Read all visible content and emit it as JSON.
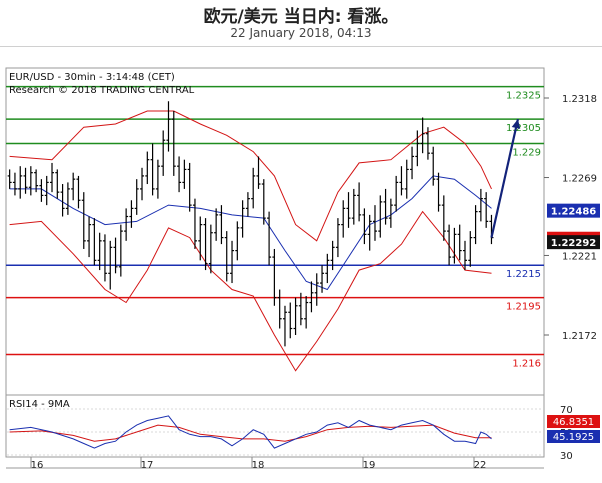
{
  "header": {
    "title": "欧元/美元 当日内: 看涨。",
    "subtitle": "22 January 2018, 04:13"
  },
  "chart_data": {
    "type": "candlestick",
    "info_line1": "EUR/USD - 30min - 3:14:48 (CET)",
    "info_line2": "Research © 2018 TRADING CENTRAL",
    "price_axis": {
      "ylim": [
        2.2137,
        1.2346
      ],
      "ticks": [
        1.2318,
        1.2269,
        1.2221,
        1.2172
      ]
    },
    "x_ticks": [
      "16",
      "17",
      "18",
      "19",
      "22"
    ],
    "levels": [
      {
        "value": 1.2325,
        "label": "1.2325",
        "color": "#1f8c1f"
      },
      {
        "value": 1.2305,
        "label": "1.2305",
        "color": "#1f8c1f"
      },
      {
        "value": 1.229,
        "label": "1.229",
        "color": "#1f8c1f"
      },
      {
        "value": 1.2215,
        "label": "1.2215",
        "color": "#1a2fb0"
      },
      {
        "value": 1.2195,
        "label": "1.2195",
        "color": "#dd1111"
      },
      {
        "value": 1.216,
        "label": "1.216",
        "color": "#dd1111"
      }
    ],
    "price_badges": [
      {
        "value": 1.22486,
        "label": "1.22486",
        "color": "#1a2fb0"
      },
      {
        "value": 1.22313,
        "label": "1.22313",
        "color": "#dd1111"
      },
      {
        "value": 1.22292,
        "label": "1.22292",
        "color": "#111111"
      }
    ],
    "ohlc": [
      [
        1.227,
        1.2274,
        1.2262,
        1.2266
      ],
      [
        1.2266,
        1.2272,
        1.2258,
        1.2262
      ],
      [
        1.2262,
        1.2276,
        1.2256,
        1.227
      ],
      [
        1.227,
        1.2275,
        1.2259,
        1.2263
      ],
      [
        1.2263,
        1.2276,
        1.2258,
        1.2272
      ],
      [
        1.2272,
        1.2274,
        1.226,
        1.2264
      ],
      [
        1.2264,
        1.2268,
        1.2254,
        1.2258
      ],
      [
        1.2258,
        1.227,
        1.2252,
        1.2266
      ],
      [
        1.2266,
        1.2278,
        1.226,
        1.2272
      ],
      [
        1.2272,
        1.2274,
        1.2256,
        1.226
      ],
      [
        1.226,
        1.2265,
        1.2245,
        1.225
      ],
      [
        1.225,
        1.2266,
        1.2246,
        1.2262
      ],
      [
        1.2262,
        1.2272,
        1.2255,
        1.2268
      ],
      [
        1.2268,
        1.227,
        1.225,
        1.2255
      ],
      [
        1.2255,
        1.226,
        1.2225,
        1.223
      ],
      [
        1.223,
        1.2245,
        1.222,
        1.224
      ],
      [
        1.224,
        1.2244,
        1.2215,
        1.2218
      ],
      [
        1.2218,
        1.2235,
        1.2212,
        1.223
      ],
      [
        1.223,
        1.2234,
        1.2205,
        1.221
      ],
      [
        1.221,
        1.223,
        1.22,
        1.2226
      ],
      [
        1.2226,
        1.2232,
        1.221,
        1.2214
      ],
      [
        1.2214,
        1.224,
        1.2208,
        1.2236
      ],
      [
        1.2236,
        1.225,
        1.223,
        1.2245
      ],
      [
        1.2245,
        1.2255,
        1.2238,
        1.225
      ],
      [
        1.225,
        1.2268,
        1.2246,
        1.2262
      ],
      [
        1.2262,
        1.2275,
        1.2255,
        1.227
      ],
      [
        1.227,
        1.2285,
        1.2265,
        1.228
      ],
      [
        1.228,
        1.229,
        1.2258,
        1.2262
      ],
      [
        1.2262,
        1.228,
        1.2256,
        1.2276
      ],
      [
        1.2276,
        1.2298,
        1.227,
        1.2292
      ],
      [
        1.2292,
        1.2316,
        1.2285,
        1.2305
      ],
      [
        1.2305,
        1.231,
        1.227,
        1.2276
      ],
      [
        1.2276,
        1.2282,
        1.226,
        1.2266
      ],
      [
        1.2266,
        1.228,
        1.2262,
        1.2274
      ],
      [
        1.2274,
        1.2278,
        1.2248,
        1.2252
      ],
      [
        1.2252,
        1.2256,
        1.2225,
        1.223
      ],
      [
        1.223,
        1.2245,
        1.2218,
        1.224
      ],
      [
        1.224,
        1.2244,
        1.2212,
        1.2216
      ],
      [
        1.2216,
        1.224,
        1.221,
        1.2235
      ],
      [
        1.2235,
        1.225,
        1.223,
        1.2246
      ],
      [
        1.2246,
        1.2252,
        1.2228,
        1.2232
      ],
      [
        1.2232,
        1.2236,
        1.2205,
        1.221
      ],
      [
        1.221,
        1.223,
        1.2204,
        1.2224
      ],
      [
        1.2224,
        1.2242,
        1.2218,
        1.2238
      ],
      [
        1.2238,
        1.2255,
        1.2232,
        1.225
      ],
      [
        1.225,
        1.226,
        1.2245,
        1.2256
      ],
      [
        1.2256,
        1.2275,
        1.225,
        1.227
      ],
      [
        1.227,
        1.2282,
        1.2262,
        1.2265
      ],
      [
        1.2265,
        1.2268,
        1.224,
        1.2244
      ],
      [
        1.2244,
        1.2248,
        1.2215,
        1.222
      ],
      [
        1.222,
        1.2225,
        1.219,
        1.2195
      ],
      [
        1.2195,
        1.22,
        1.2176,
        1.2182
      ],
      [
        1.2182,
        1.219,
        1.2165,
        1.2186
      ],
      [
        1.2186,
        1.2192,
        1.217,
        1.2176
      ],
      [
        1.2176,
        1.2195,
        1.2172,
        1.219
      ],
      [
        1.219,
        1.2198,
        1.2178,
        1.2182
      ],
      [
        1.2182,
        1.2196,
        1.2176,
        1.2192
      ],
      [
        1.2192,
        1.2205,
        1.2186,
        1.2198
      ],
      [
        1.2198,
        1.221,
        1.219,
        1.2204
      ],
      [
        1.2204,
        1.2215,
        1.2198,
        1.221
      ],
      [
        1.221,
        1.2222,
        1.2204,
        1.2218
      ],
      [
        1.2218,
        1.223,
        1.2212,
        1.2226
      ],
      [
        1.2226,
        1.2244,
        1.222,
        1.224
      ],
      [
        1.224,
        1.2255,
        1.2232,
        1.225
      ],
      [
        1.225,
        1.226,
        1.2238,
        1.2244
      ],
      [
        1.2244,
        1.2262,
        1.224,
        1.2258
      ],
      [
        1.2258,
        1.2266,
        1.2242,
        1.2246
      ],
      [
        1.2246,
        1.225,
        1.2228,
        1.2234
      ],
      [
        1.2234,
        1.2246,
        1.2224,
        1.2242
      ],
      [
        1.2242,
        1.2252,
        1.223,
        1.2236
      ],
      [
        1.2236,
        1.2258,
        1.2232,
        1.2254
      ],
      [
        1.2254,
        1.2262,
        1.224,
        1.2244
      ],
      [
        1.2244,
        1.2256,
        1.2238,
        1.2252
      ],
      [
        1.2252,
        1.227,
        1.2248,
        1.2266
      ],
      [
        1.2266,
        1.2276,
        1.2258,
        1.2262
      ],
      [
        1.2262,
        1.228,
        1.2256,
        1.2274
      ],
      [
        1.2274,
        1.2288,
        1.2268,
        1.2282
      ],
      [
        1.2282,
        1.2298,
        1.2276,
        1.229
      ],
      [
        1.229,
        1.2306,
        1.2284,
        1.2296
      ],
      [
        1.2296,
        1.23,
        1.228,
        1.2284
      ],
      [
        1.2284,
        1.2288,
        1.2264,
        1.2268
      ],
      [
        1.2268,
        1.2272,
        1.2248,
        1.2252
      ],
      [
        1.2252,
        1.2258,
        1.223,
        1.2236
      ],
      [
        1.2236,
        1.224,
        1.2215,
        1.222
      ],
      [
        1.222,
        1.2238,
        1.2216,
        1.2234
      ],
      [
        1.2234,
        1.224,
        1.2218,
        1.2224
      ],
      [
        1.2224,
        1.223,
        1.2212,
        1.2218
      ],
      [
        1.2218,
        1.2236,
        1.2214,
        1.2232
      ],
      [
        1.2232,
        1.2252,
        1.2228,
        1.2248
      ],
      [
        1.2248,
        1.2262,
        1.2242,
        1.2256
      ],
      [
        1.2256,
        1.226,
        1.2238,
        1.2242
      ],
      [
        1.2242,
        1.2246,
        1.2228,
        1.2232
      ]
    ],
    "bollinger_upper": [
      [
        0,
        1.2282
      ],
      [
        8,
        1.228
      ],
      [
        14,
        1.23
      ],
      [
        20,
        1.2302
      ],
      [
        26,
        1.231
      ],
      [
        31,
        1.231
      ],
      [
        36,
        1.2302
      ],
      [
        41,
        1.2295
      ],
      [
        46,
        1.2285
      ],
      [
        50,
        1.227
      ],
      [
        54,
        1.224
      ],
      [
        58,
        1.223
      ],
      [
        62,
        1.226
      ],
      [
        66,
        1.2278
      ],
      [
        72,
        1.228
      ],
      [
        78,
        1.2296
      ],
      [
        82,
        1.23
      ],
      [
        86,
        1.229
      ],
      [
        89,
        1.2276
      ],
      [
        91,
        1.2262
      ]
    ],
    "bollinger_lower": [
      [
        0,
        1.224
      ],
      [
        6,
        1.2242
      ],
      [
        12,
        1.2222
      ],
      [
        18,
        1.22
      ],
      [
        22,
        1.2192
      ],
      [
        26,
        1.2212
      ],
      [
        30,
        1.2238
      ],
      [
        34,
        1.2232
      ],
      [
        38,
        1.2212
      ],
      [
        42,
        1.22
      ],
      [
        46,
        1.2196
      ],
      [
        50,
        1.2172
      ],
      [
        54,
        1.215
      ],
      [
        58,
        1.2168
      ],
      [
        62,
        1.2188
      ],
      [
        66,
        1.2212
      ],
      [
        70,
        1.2216
      ],
      [
        74,
        1.2228
      ],
      [
        78,
        1.2248
      ],
      [
        82,
        1.2232
      ],
      [
        86,
        1.2212
      ],
      [
        91,
        1.221
      ]
    ],
    "ma_line": [
      [
        0,
        1.2262
      ],
      [
        6,
        1.2262
      ],
      [
        12,
        1.225
      ],
      [
        18,
        1.224
      ],
      [
        24,
        1.2242
      ],
      [
        30,
        1.2252
      ],
      [
        36,
        1.225
      ],
      [
        42,
        1.2246
      ],
      [
        48,
        1.2244
      ],
      [
        52,
        1.2224
      ],
      [
        56,
        1.2205
      ],
      [
        60,
        1.22
      ],
      [
        64,
        1.222
      ],
      [
        68,
        1.224
      ],
      [
        72,
        1.2246
      ],
      [
        76,
        1.2256
      ],
      [
        80,
        1.227
      ],
      [
        84,
        1.2268
      ],
      [
        88,
        1.2258
      ],
      [
        91,
        1.225
      ]
    ],
    "forecast_arrow": {
      "from": [
        91,
        1.2232
      ],
      "to": [
        96,
        1.2305
      ]
    },
    "rsi": {
      "label": "RSI14 - 9MA",
      "ylim": [
        30,
        70
      ],
      "ticks": [
        70,
        50,
        30
      ],
      "rsi_value": "46.8351",
      "ma_value": "45.1925",
      "rsi": [
        [
          0,
          52
        ],
        [
          4,
          54
        ],
        [
          8,
          50
        ],
        [
          12,
          44
        ],
        [
          14,
          40
        ],
        [
          16,
          36
        ],
        [
          18,
          40
        ],
        [
          20,
          42
        ],
        [
          22,
          50
        ],
        [
          24,
          56
        ],
        [
          26,
          60
        ],
        [
          28,
          62
        ],
        [
          30,
          64
        ],
        [
          32,
          52
        ],
        [
          34,
          48
        ],
        [
          36,
          46
        ],
        [
          38,
          46
        ],
        [
          40,
          44
        ],
        [
          42,
          38
        ],
        [
          44,
          44
        ],
        [
          46,
          52
        ],
        [
          48,
          48
        ],
        [
          50,
          36
        ],
        [
          52,
          40
        ],
        [
          54,
          44
        ],
        [
          56,
          48
        ],
        [
          58,
          50
        ],
        [
          60,
          56
        ],
        [
          62,
          58
        ],
        [
          64,
          54
        ],
        [
          66,
          60
        ],
        [
          68,
          56
        ],
        [
          70,
          54
        ],
        [
          72,
          52
        ],
        [
          74,
          56
        ],
        [
          76,
          58
        ],
        [
          78,
          60
        ],
        [
          80,
          56
        ],
        [
          82,
          48
        ],
        [
          84,
          42
        ],
        [
          86,
          42
        ],
        [
          88,
          40
        ],
        [
          89,
          50
        ],
        [
          90,
          48
        ],
        [
          91,
          44
        ]
      ],
      "ma": [
        [
          0,
          50
        ],
        [
          6,
          51
        ],
        [
          12,
          47
        ],
        [
          16,
          42
        ],
        [
          20,
          44
        ],
        [
          24,
          50
        ],
        [
          28,
          56
        ],
        [
          32,
          54
        ],
        [
          36,
          48
        ],
        [
          40,
          46
        ],
        [
          44,
          44
        ],
        [
          48,
          44
        ],
        [
          52,
          42
        ],
        [
          56,
          46
        ],
        [
          60,
          52
        ],
        [
          64,
          54
        ],
        [
          68,
          55
        ],
        [
          72,
          54
        ],
        [
          76,
          55
        ],
        [
          80,
          56
        ],
        [
          84,
          49
        ],
        [
          88,
          45
        ],
        [
          91,
          45
        ]
      ]
    }
  }
}
